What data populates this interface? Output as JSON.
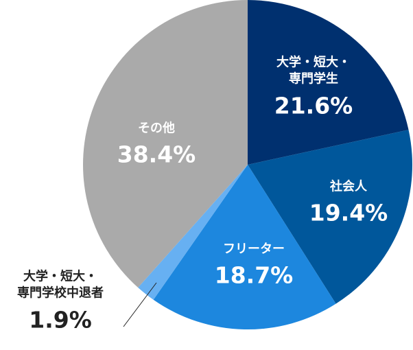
{
  "chart_data": {
    "type": "pie",
    "start": "top",
    "direction": "clockwise",
    "slices": [
      {
        "label_lines": [
          "大学・短大・",
          "専門学生"
        ],
        "value": 21.6,
        "value_label": "21.6%",
        "color": "#00306f"
      },
      {
        "label_lines": [
          "社会人"
        ],
        "value": 19.4,
        "value_label": "19.4%",
        "color": "#00579b"
      },
      {
        "label_lines": [
          "フリーター"
        ],
        "value": 18.7,
        "value_label": "18.7%",
        "color": "#1d87de"
      },
      {
        "label_lines": [
          "大学・短大・",
          "専門学校中退者"
        ],
        "value": 1.9,
        "value_label": "1.9%",
        "color": "#67b0f2"
      },
      {
        "label_lines": [
          "その他"
        ],
        "value": 38.4,
        "value_label": "38.4%",
        "color": "#aaaaaa"
      }
    ]
  }
}
